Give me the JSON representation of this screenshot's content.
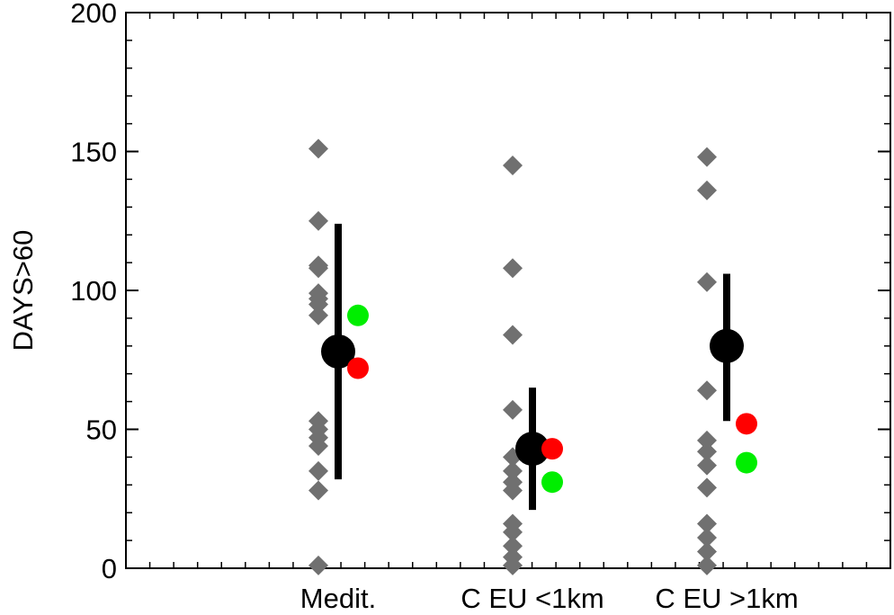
{
  "chart_data": {
    "type": "scatter",
    "title": "",
    "xlabel": "",
    "ylabel": "DAYS>60",
    "ylim": [
      0,
      200
    ],
    "y_ticks": [
      0,
      50,
      100,
      150,
      200
    ],
    "y_tick_labels": [
      "0",
      "50",
      "100",
      "150",
      "200"
    ],
    "categories": [
      "Medit.",
      "C EU <1km",
      "C EU >1km"
    ],
    "grid": false,
    "legend": "none",
    "series": [
      {
        "marker": "diamond",
        "color": "#707070",
        "points": [
          {
            "category": "Medit.",
            "values": [
              151,
              125,
              109,
              108,
              99,
              97,
              95,
              91,
              53,
              50,
              47,
              44,
              35,
              28,
              1
            ]
          },
          {
            "category": "C EU <1km",
            "values": [
              145,
              108,
              84,
              57,
              40,
              35,
              31,
              28,
              16,
              13,
              8,
              4,
              1
            ]
          },
          {
            "category": "C EU >1km",
            "values": [
              148,
              136,
              103,
              64,
              46,
              42,
              37,
              29,
              16,
              11,
              6,
              1
            ]
          }
        ]
      },
      {
        "marker": "circle-large",
        "color": "#000000",
        "error_bars": true,
        "points": [
          {
            "category": "Medit.",
            "value": 78,
            "low": 32,
            "high": 124
          },
          {
            "category": "C EU <1km",
            "value": 43,
            "low": 21,
            "high": 65
          },
          {
            "category": "C EU >1km",
            "value": 80,
            "low": 53,
            "high": 106
          }
        ]
      },
      {
        "marker": "circle",
        "color": "#00ee00",
        "points": [
          {
            "category": "Medit.",
            "value": 91
          },
          {
            "category": "C EU <1km",
            "value": 31
          },
          {
            "category": "C EU >1km",
            "value": 38
          }
        ]
      },
      {
        "marker": "circle",
        "color": "#ff0000",
        "points": [
          {
            "category": "Medit.",
            "value": 72
          },
          {
            "category": "C EU <1km",
            "value": 43
          },
          {
            "category": "C EU >1km",
            "value": 52
          }
        ]
      }
    ]
  }
}
